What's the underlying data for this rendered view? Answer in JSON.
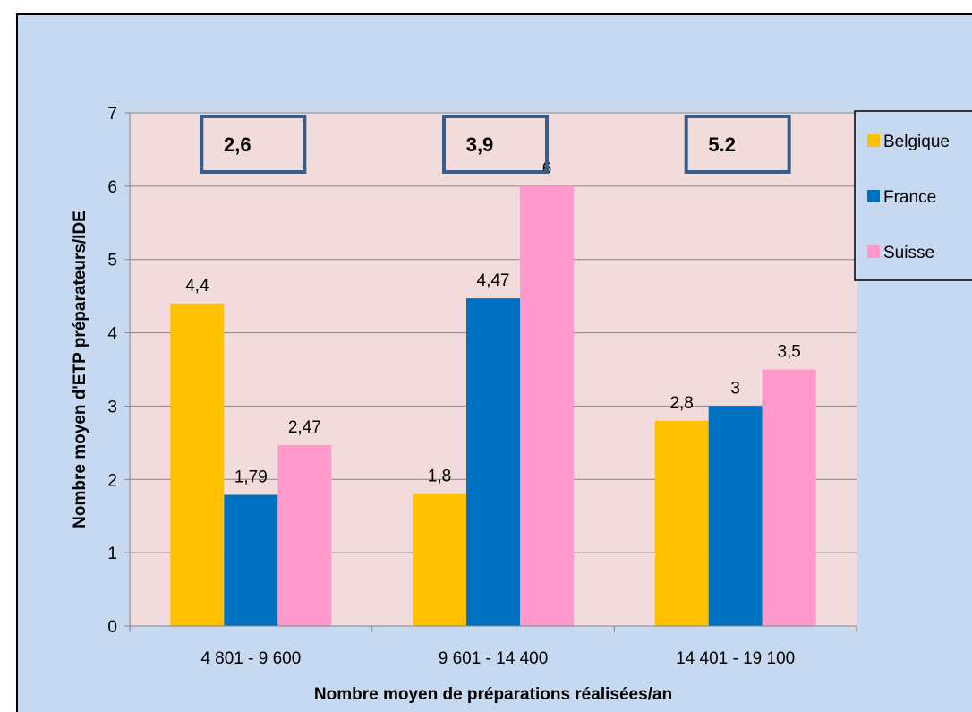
{
  "chart_data": {
    "type": "bar",
    "categories": [
      "4 801 - 9 600",
      "9 601 - 14 400",
      "14 401 - 19 100"
    ],
    "series": [
      {
        "name": "Belgique",
        "values": [
          4.4,
          1.8,
          2.8
        ],
        "labels": [
          "4,4",
          "1,8",
          "2,8"
        ],
        "color": "#ffc000"
      },
      {
        "name": "France",
        "values": [
          1.79,
          4.47,
          3
        ],
        "labels": [
          "1,79",
          "4,47",
          "3"
        ],
        "color": "#0070c0"
      },
      {
        "name": "Suisse",
        "values": [
          2.47,
          6,
          3.5
        ],
        "labels": [
          "2,47",
          "6",
          "3,5"
        ],
        "color": "#ff99cc"
      }
    ],
    "annotations": [
      "2,6",
      "3,9",
      "5.2"
    ],
    "xlabel": "Nombre moyen de préparations réalisées/an",
    "ylabel": "Nombre moyen d'ETP préparateurs/IDE",
    "ylim": [
      0,
      7
    ],
    "yticks": [
      "0",
      "1",
      "2",
      "3",
      "4",
      "5",
      "6",
      "7"
    ],
    "grid": true,
    "legend_position": "right",
    "plot_background": "#f2dcdb",
    "chart_background": "#c6d9f1",
    "annotation_border_color": "#385d8a"
  }
}
